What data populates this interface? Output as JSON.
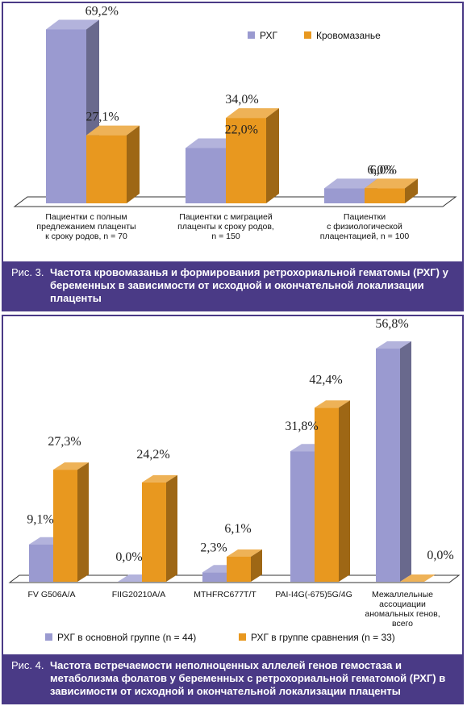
{
  "colors": {
    "series1": "#9a9ad0",
    "series2": "#e8981f",
    "caption_bg": "#4a3a86"
  },
  "chart_data": [
    {
      "type": "bar",
      "categories": [
        [
          "Пациентки с полным",
          "предлежанием плаценты",
          "к сроку родов, n = 70"
        ],
        [
          "Пациентки с миграцией",
          "плаценты к сроку родов,",
          "n = 150"
        ],
        [
          "Пациентки",
          "с физиологической",
          "плацентацией, n = 100"
        ]
      ],
      "series": [
        {
          "name": "РХГ",
          "values": [
            69.2,
            22.0,
            6.0
          ],
          "labels": [
            "69,2%",
            "22,0%",
            "6,0%"
          ]
        },
        {
          "name": "Кровомазанье",
          "values": [
            27.1,
            34.0,
            6.0
          ],
          "labels": [
            "27,1%",
            "34,0%",
            "6,0%"
          ]
        }
      ],
      "legend_position": "top-right",
      "ylim": [
        0,
        70
      ],
      "caption_fig": "Рис. 3.",
      "caption_text": "Частота кровомазанья и формирования ретрохориальной гематомы (РХГ) у беременных в зависимости от исходной и окончательной локализации плаценты"
    },
    {
      "type": "bar",
      "categories": [
        [
          "FV G506A/A"
        ],
        [
          "FIIG20210A/A"
        ],
        [
          "MTHFRC677T/T"
        ],
        [
          "PAI-I4G(-675)5G/4G"
        ],
        [
          "Межаллельные",
          "ассоциации",
          "аномальных генов,",
          "всего"
        ]
      ],
      "series": [
        {
          "name": "РХГ в основной группе (n = 44)",
          "values": [
            9.1,
            0.0,
            2.3,
            31.8,
            56.8
          ],
          "labels": [
            "9,1%",
            "0,0%",
            "2,3%",
            "31,8%",
            "56,8%"
          ]
        },
        {
          "name": "РХГ в группе сравнения (n = 33)",
          "values": [
            27.3,
            24.2,
            6.1,
            42.4,
            0.0
          ],
          "labels": [
            "27,3%",
            "24,2%",
            "6,1%",
            "42,4%",
            "0,0%"
          ]
        }
      ],
      "legend_position": "bottom",
      "ylim": [
        0,
        57
      ],
      "caption_fig": "Рис. 4.",
      "caption_text": "Частота встречаемости неполноценных аллелей генов гемостаза и метаболизма фолатов у беременных с ретрохориальной гематомой (РХГ) в зависимости от исходной и окончательной локализации плаценты"
    }
  ]
}
